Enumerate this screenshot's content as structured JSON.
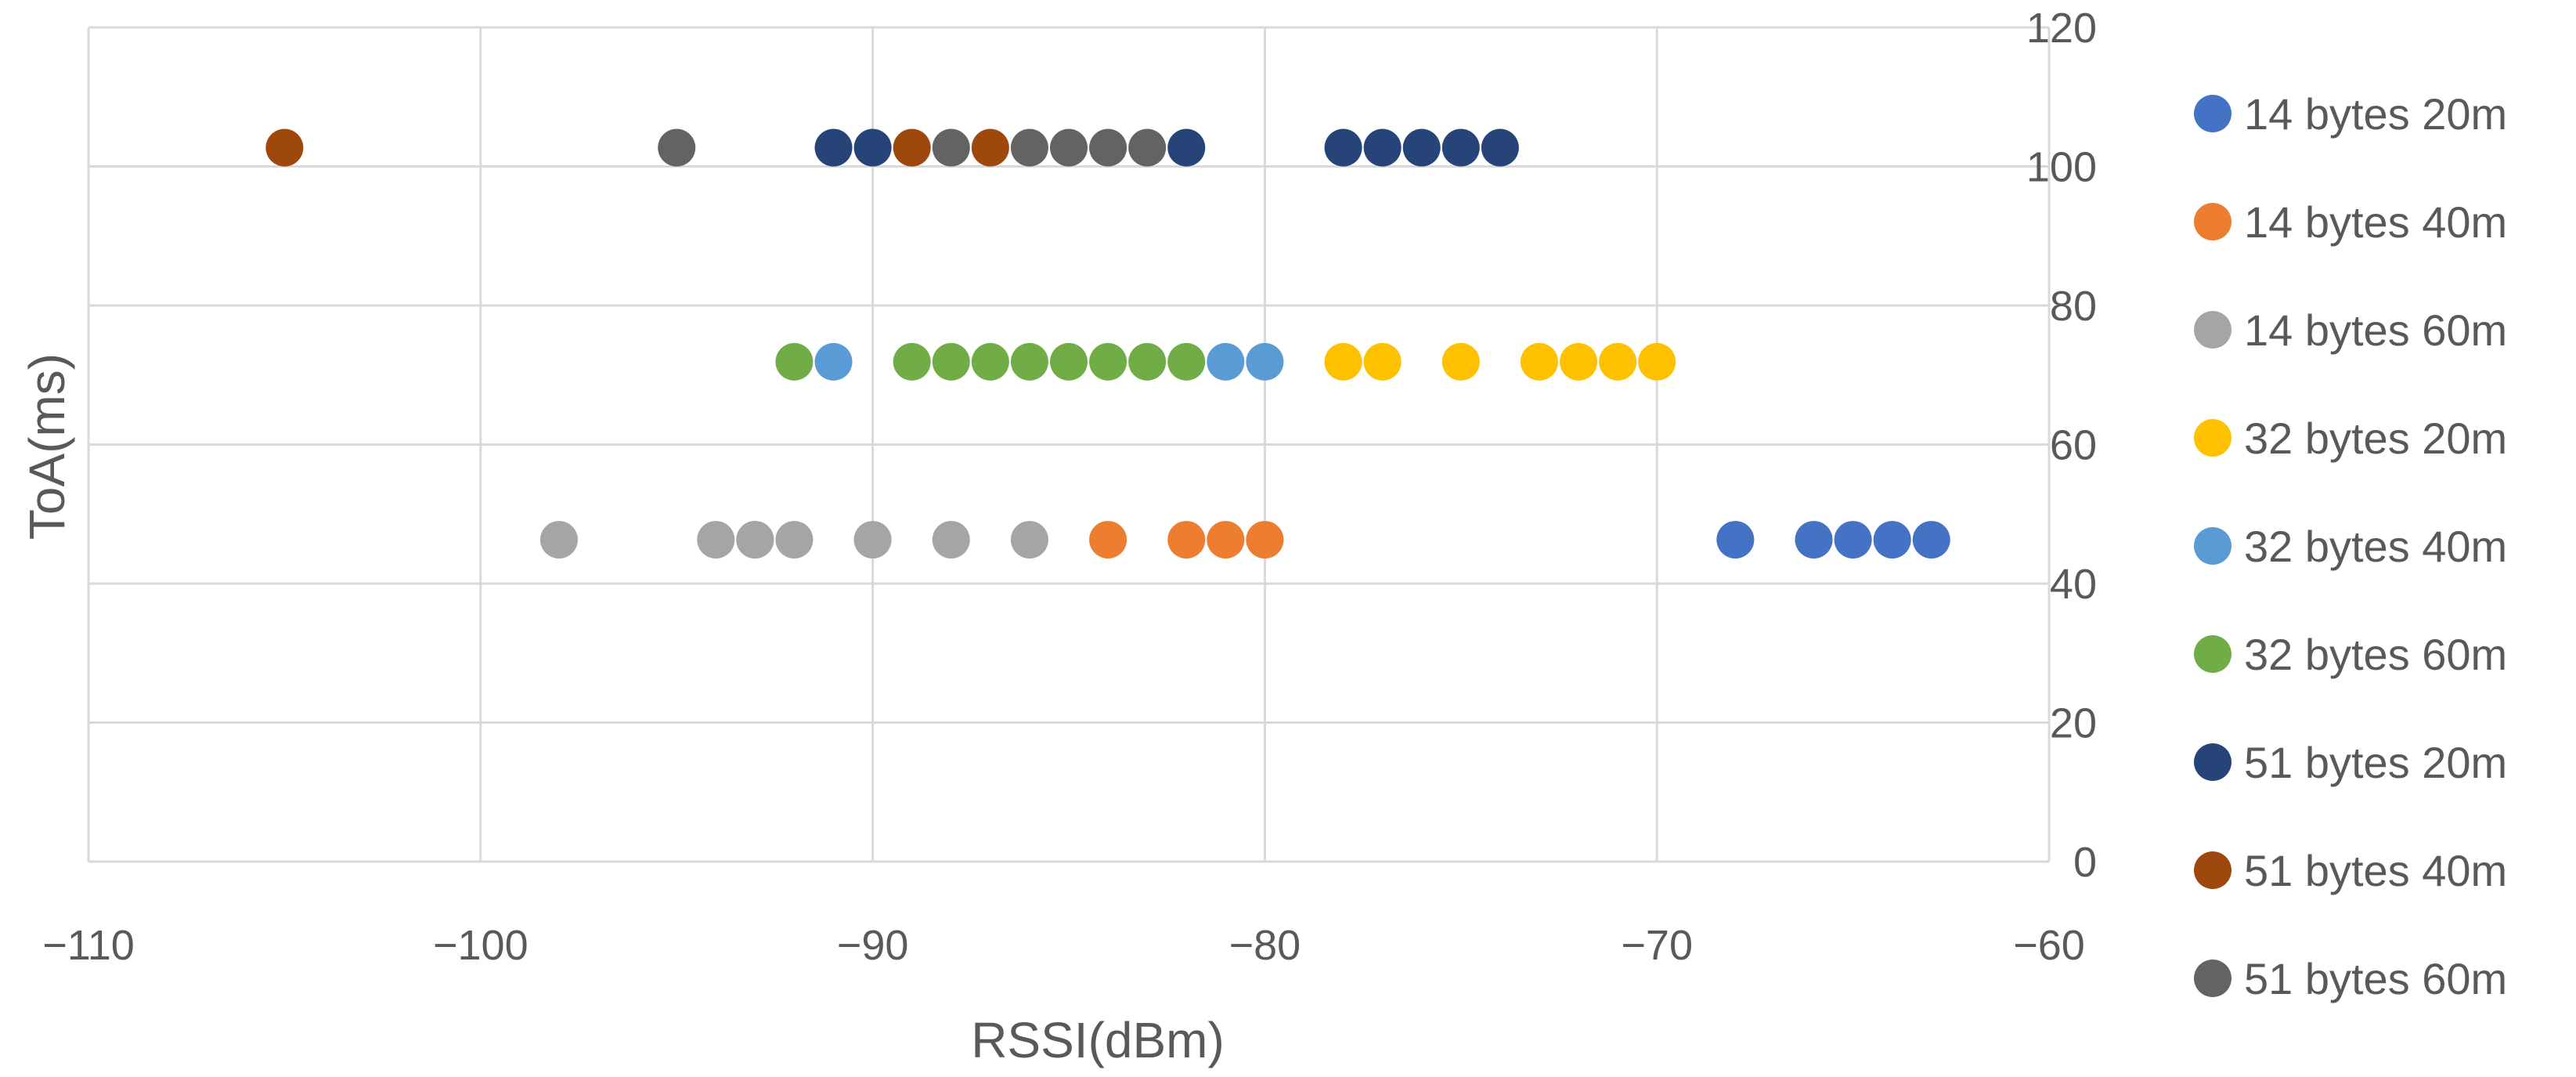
{
  "chart_data": {
    "type": "scatter",
    "title": "",
    "xlabel": "RSSI(dBm)",
    "ylabel": "ToA(ms)",
    "xlim": [
      -110,
      -60
    ],
    "ylim": [
      0,
      120
    ],
    "x_ticks": [
      -110,
      -100,
      -90,
      -80,
      -70,
      -60
    ],
    "y_ticks": [
      0,
      20,
      40,
      60,
      80,
      100,
      120
    ],
    "grid": true,
    "legend_position": "right",
    "series": [
      {
        "name": "14 bytes 20m",
        "color": "#4472c4",
        "points": [
          [
            -68,
            46.3
          ],
          [
            -66,
            46.3
          ],
          [
            -65,
            46.3
          ],
          [
            -64,
            46.3
          ],
          [
            -63,
            46.3
          ]
        ]
      },
      {
        "name": "14 bytes 40m",
        "color": "#ed7d31",
        "points": [
          [
            -93,
            46.3
          ],
          [
            -84,
            46.3
          ],
          [
            -82,
            46.3
          ],
          [
            -81,
            46.3
          ],
          [
            -80,
            46.3
          ]
        ]
      },
      {
        "name": "14 bytes 60m",
        "color": "#a5a5a5",
        "points": [
          [
            -98,
            46.3
          ],
          [
            -94,
            46.3
          ],
          [
            -93,
            46.3
          ],
          [
            -92,
            46.3
          ],
          [
            -90,
            46.3
          ],
          [
            -88,
            46.3
          ],
          [
            -86,
            46.3
          ]
        ]
      },
      {
        "name": "32 bytes 20m",
        "color": "#ffc000",
        "points": [
          [
            -78,
            71.9
          ],
          [
            -77,
            71.9
          ],
          [
            -75,
            71.9
          ],
          [
            -73,
            71.9
          ],
          [
            -72,
            71.9
          ],
          [
            -71,
            71.9
          ],
          [
            -70,
            71.9
          ]
        ]
      },
      {
        "name": "32 bytes 40m",
        "color": "#5b9bd5",
        "points": [
          [
            -91,
            71.9
          ],
          [
            -81,
            71.9
          ],
          [
            -80,
            71.9
          ]
        ]
      },
      {
        "name": "32 bytes 60m",
        "color": "#70ad47",
        "points": [
          [
            -92,
            71.9
          ],
          [
            -89,
            71.9
          ],
          [
            -88,
            71.9
          ],
          [
            -87,
            71.9
          ],
          [
            -86,
            71.9
          ],
          [
            -85,
            71.9
          ],
          [
            -84,
            71.9
          ],
          [
            -83,
            71.9
          ],
          [
            -82,
            71.9
          ]
        ]
      },
      {
        "name": "51 bytes 20m",
        "color": "#264478",
        "points": [
          [
            -91,
            102.7
          ],
          [
            -90,
            102.7
          ],
          [
            -82,
            102.7
          ],
          [
            -78,
            102.7
          ],
          [
            -77,
            102.7
          ],
          [
            -76,
            102.7
          ],
          [
            -75,
            102.7
          ],
          [
            -74,
            102.7
          ]
        ]
      },
      {
        "name": "51 bytes 40m",
        "color": "#9e480e",
        "points": [
          [
            -105,
            102.7
          ],
          [
            -89,
            102.7
          ],
          [
            -87,
            102.7
          ]
        ]
      },
      {
        "name": "51 bytes 60m",
        "color": "#636363",
        "points": [
          [
            -95,
            102.7
          ],
          [
            -88,
            102.7
          ],
          [
            -86,
            102.7
          ],
          [
            -85,
            102.7
          ],
          [
            -84,
            102.7
          ],
          [
            -83,
            102.7
          ]
        ]
      }
    ]
  }
}
